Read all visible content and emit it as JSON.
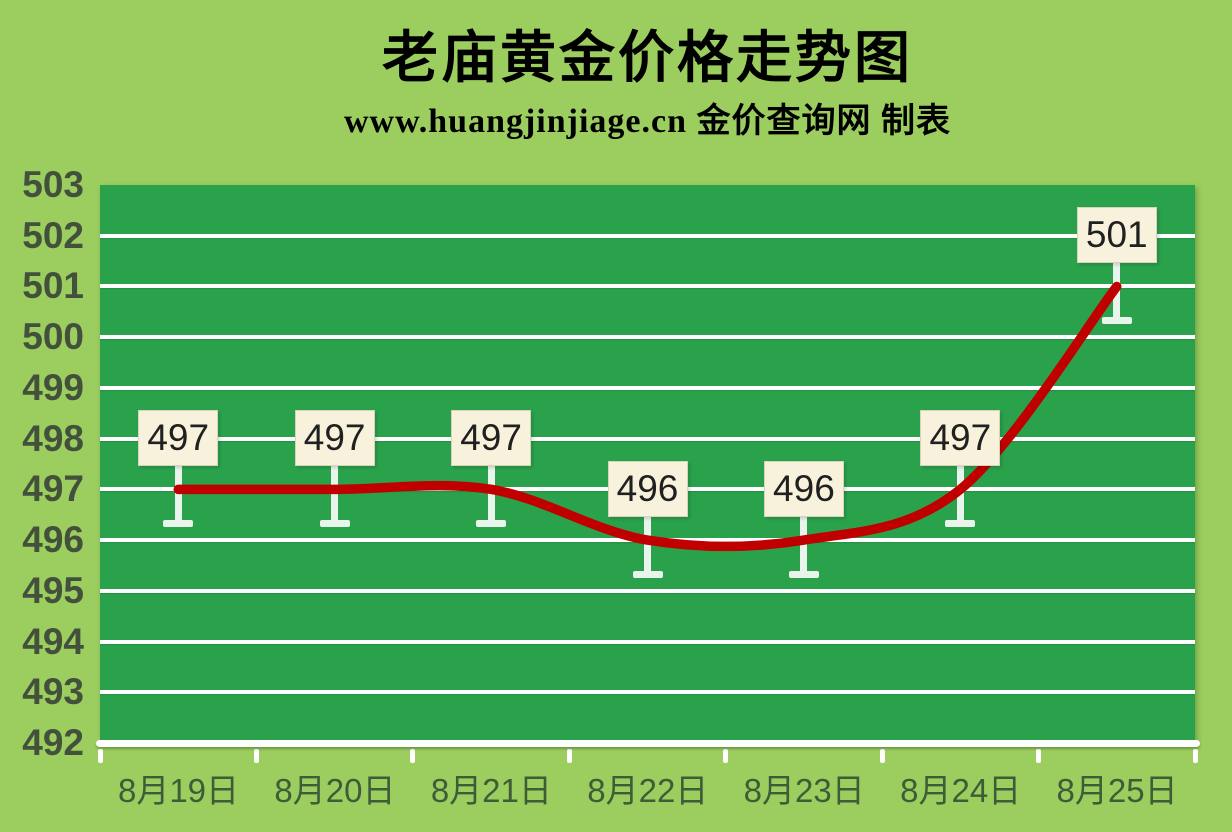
{
  "chart_data": {
    "type": "line",
    "title": "老庙黄金价格走势图",
    "subtitle": "www.huangjinjiage.cn 金价查询网 制表",
    "categories": [
      "8月19日",
      "8月20日",
      "8月21日",
      "8月22日",
      "8月23日",
      "8月24日",
      "8月25日"
    ],
    "values": [
      497,
      497,
      497,
      496,
      496,
      497,
      501
    ],
    "data_labels": [
      "497",
      "497",
      "497",
      "496",
      "496",
      "497",
      "501"
    ],
    "ylim": [
      492,
      503
    ],
    "ytick_step": 1,
    "smooth": true,
    "grid": true,
    "legend": "none",
    "xlabel": "",
    "ylabel": "",
    "colors": {
      "line": "#c00000",
      "plot_background": "#2aa24c",
      "page_background": "#9ccd5f",
      "gridline": "#ffffff",
      "leader": "#e9f4ec",
      "label_box_fill": "#f8f2dc",
      "label_box_border": "#d9d3ba",
      "label_text": "#202020",
      "y_axis_text": "#42503c",
      "x_axis_text": "#3e5c37",
      "title_text": "#000000"
    }
  }
}
